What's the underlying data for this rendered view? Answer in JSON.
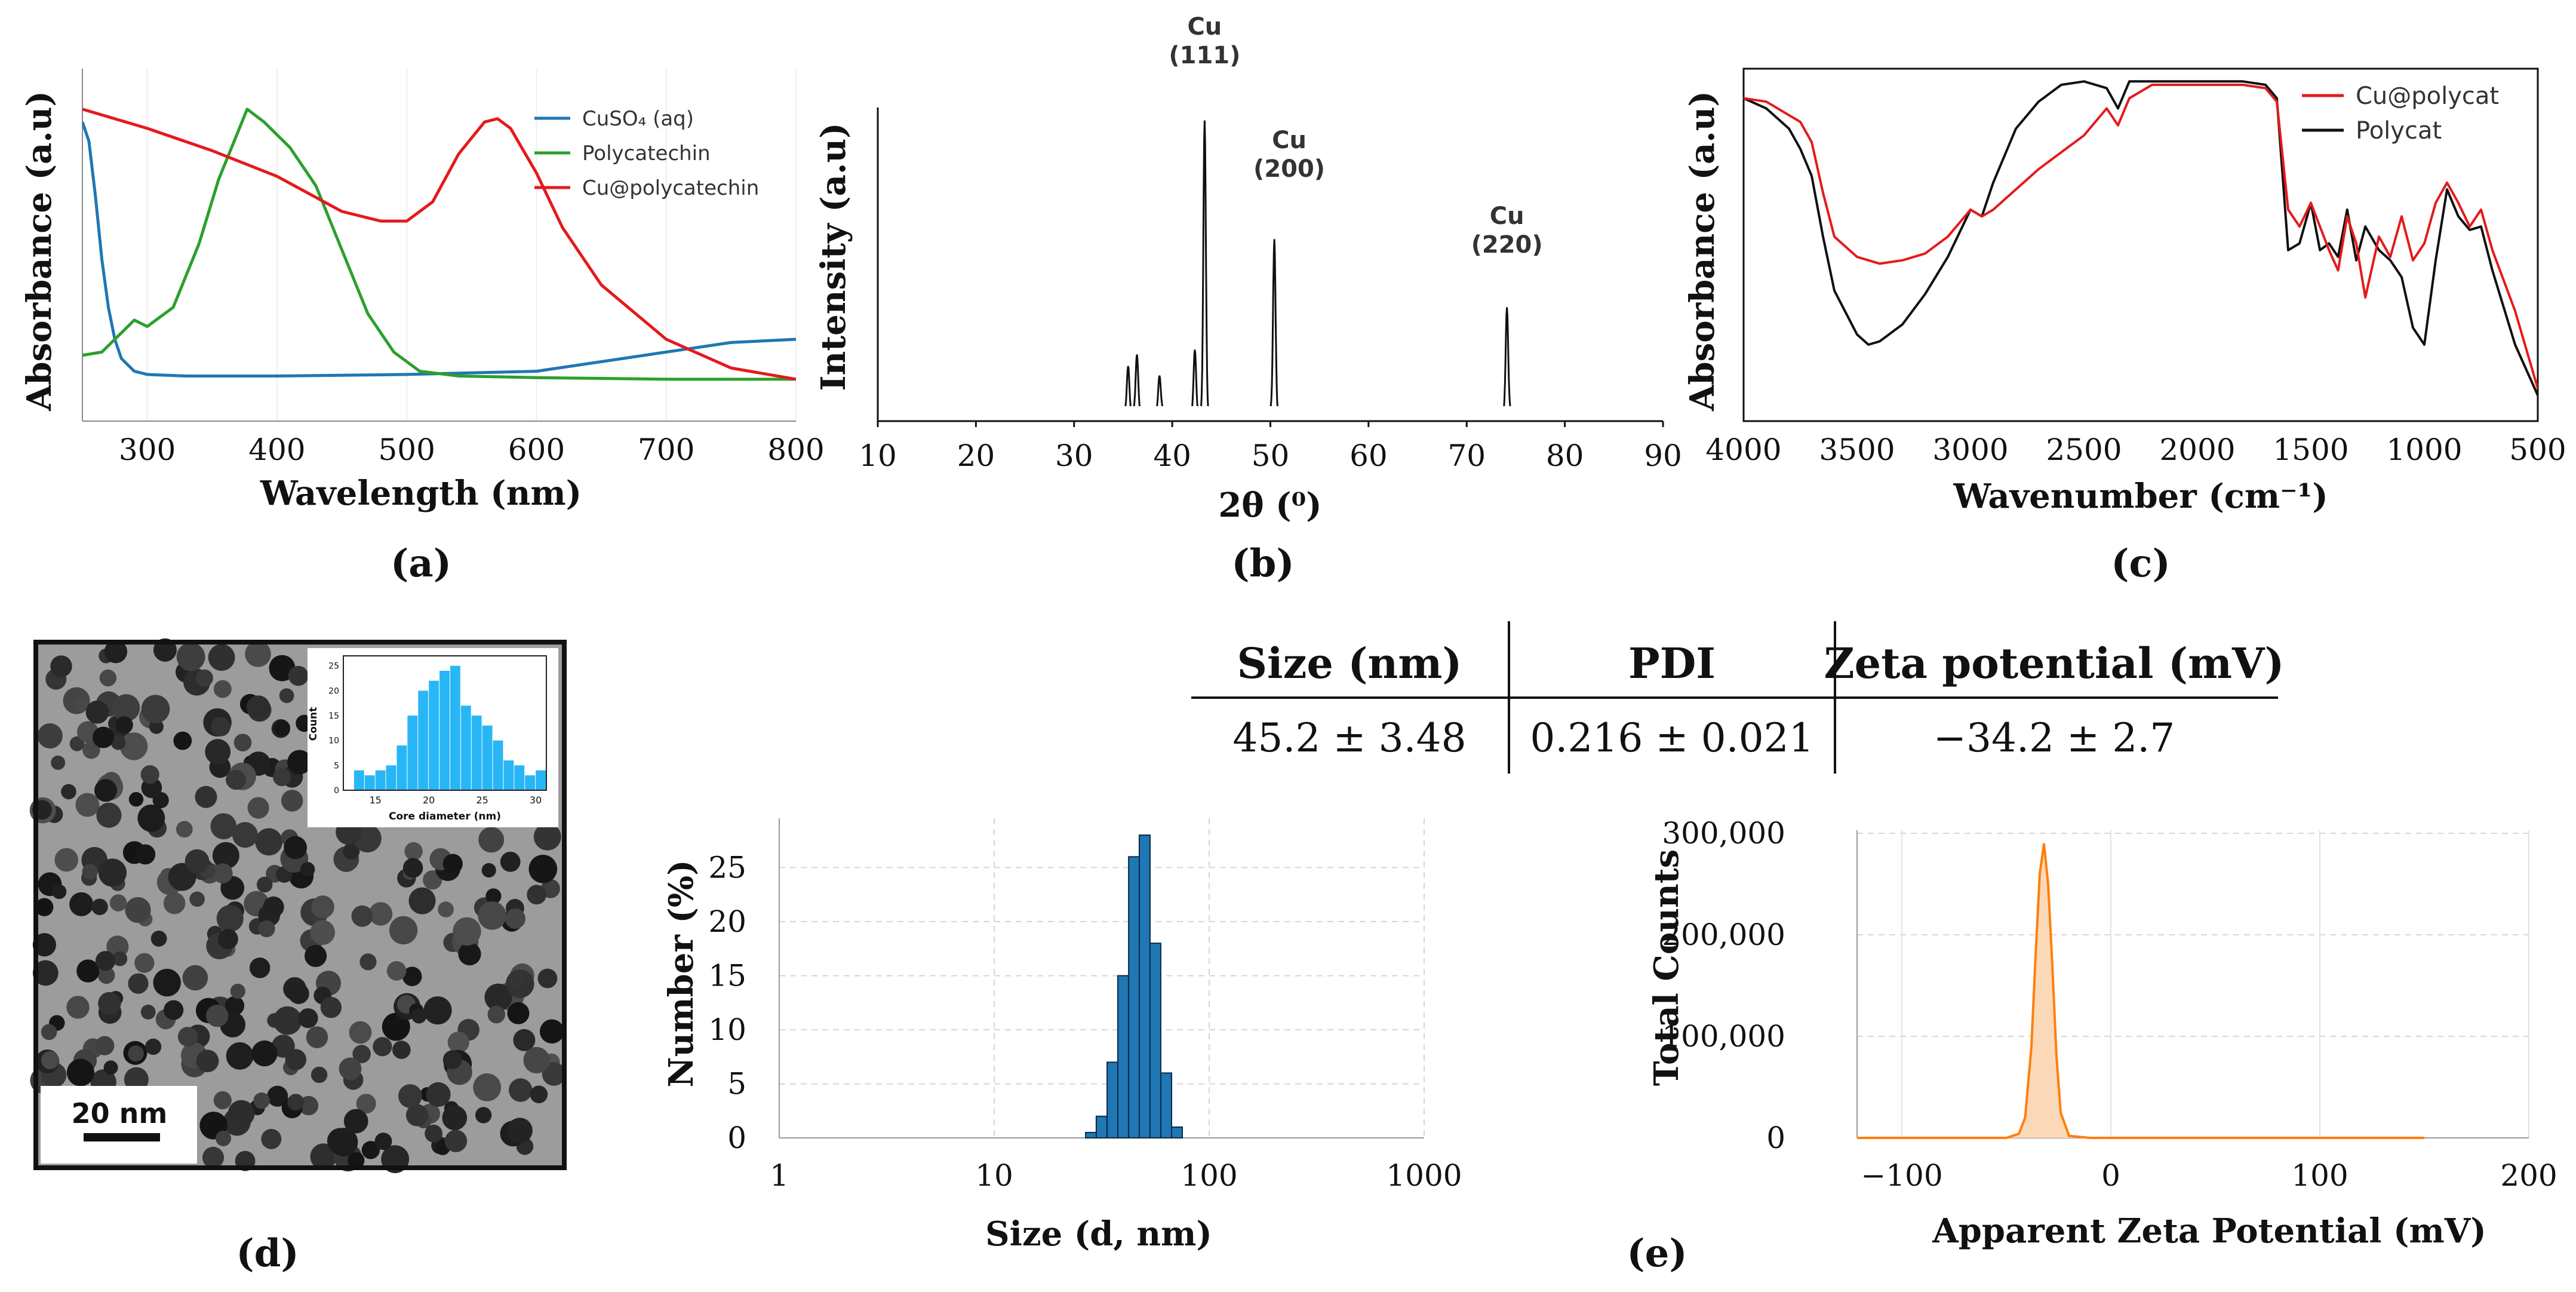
{
  "chart_data": [
    {
      "panel": "(a)",
      "type": "line",
      "xlabel": "Wavelength (nm)",
      "ylabel": "Absorbance (a.u)",
      "xlim": [
        250,
        800
      ],
      "ylim": [
        0,
        1.0
      ],
      "xticks": [
        300,
        400,
        500,
        600,
        700,
        800
      ],
      "legend": "top-right",
      "series": [
        {
          "name": "CuSO₄ (aq)",
          "color": "#1f77b4",
          "x": [
            250,
            255,
            260,
            265,
            270,
            275,
            280,
            290,
            300,
            330,
            400,
            500,
            600,
            650,
            700,
            750,
            800
          ],
          "y": [
            0.88,
            0.82,
            0.65,
            0.45,
            0.3,
            0.2,
            0.14,
            0.1,
            0.09,
            0.085,
            0.085,
            0.09,
            0.1,
            0.13,
            0.16,
            0.19,
            0.2
          ]
        },
        {
          "name": "Polycatechin",
          "color": "#2ca02c",
          "x": [
            250,
            265,
            280,
            290,
            300,
            320,
            340,
            355,
            370,
            377,
            390,
            410,
            430,
            450,
            470,
            490,
            510,
            540,
            600,
            700,
            800
          ],
          "y": [
            0.15,
            0.16,
            0.22,
            0.26,
            0.24,
            0.3,
            0.5,
            0.7,
            0.85,
            0.92,
            0.88,
            0.8,
            0.68,
            0.48,
            0.28,
            0.16,
            0.1,
            0.085,
            0.08,
            0.075,
            0.075
          ]
        },
        {
          "name": "Cu@polycatechin",
          "color": "#e41a1c",
          "x": [
            250,
            300,
            350,
            400,
            450,
            480,
            500,
            520,
            540,
            560,
            570,
            580,
            600,
            620,
            650,
            700,
            750,
            800
          ],
          "y": [
            0.92,
            0.86,
            0.79,
            0.71,
            0.6,
            0.57,
            0.57,
            0.63,
            0.78,
            0.88,
            0.89,
            0.86,
            0.72,
            0.55,
            0.37,
            0.2,
            0.11,
            0.075
          ]
        }
      ]
    },
    {
      "panel": "(b)",
      "type": "line",
      "xlabel": "2θ (⁰)",
      "ylabel": "Intensity (a.u)",
      "xlim": [
        10,
        90
      ],
      "ylim": [
        0,
        1.0
      ],
      "xticks": [
        10,
        20,
        30,
        40,
        50,
        60,
        70,
        80,
        90
      ],
      "peaks": [
        {
          "label": "Cu",
          "hkl": "(111)",
          "x": 43.3,
          "y": 0.95
        },
        {
          "label": "Cu",
          "hkl": "(200)",
          "x": 50.4,
          "y": 0.58
        },
        {
          "label": "Cu",
          "hkl": "(220)",
          "x": 74.1,
          "y": 0.36
        }
      ],
      "minor_peaks": [
        {
          "x": 35.5,
          "y": 0.17
        },
        {
          "x": 36.4,
          "y": 0.21
        },
        {
          "x": 38.7,
          "y": 0.15
        },
        {
          "x": 42.3,
          "y": 0.22
        }
      ],
      "baseline": 0.03,
      "color": "#111111"
    },
    {
      "panel": "(c)",
      "type": "line",
      "xlabel": "Wavenumber (cm⁻¹)",
      "ylabel": "Absorbance (a.u)",
      "xlim": [
        4000,
        500
      ],
      "ylim": [
        0,
        1.0
      ],
      "xticks": [
        4000,
        3500,
        3000,
        2500,
        2000,
        1500,
        1000,
        500
      ],
      "legend": "top-right",
      "series": [
        {
          "name": "Cu@polycat",
          "color": "#e41a1c",
          "x": [
            4000,
            3900,
            3800,
            3750,
            3700,
            3650,
            3600,
            3500,
            3400,
            3300,
            3200,
            3100,
            3000,
            2950,
            2900,
            2700,
            2500,
            2400,
            2350,
            2300,
            2200,
            2000,
            1800,
            1700,
            1650,
            1600,
            1550,
            1500,
            1460,
            1420,
            1380,
            1340,
            1300,
            1260,
            1200,
            1150,
            1100,
            1050,
            1000,
            950,
            900,
            850,
            800,
            750,
            700,
            600,
            500
          ],
          "y": [
            0.93,
            0.92,
            0.88,
            0.86,
            0.8,
            0.65,
            0.52,
            0.46,
            0.44,
            0.45,
            0.47,
            0.52,
            0.6,
            0.58,
            0.6,
            0.72,
            0.82,
            0.9,
            0.85,
            0.93,
            0.97,
            0.97,
            0.97,
            0.96,
            0.92,
            0.6,
            0.55,
            0.62,
            0.55,
            0.48,
            0.42,
            0.58,
            0.5,
            0.34,
            0.52,
            0.46,
            0.58,
            0.45,
            0.5,
            0.62,
            0.68,
            0.62,
            0.55,
            0.6,
            0.48,
            0.3,
            0.07
          ]
        },
        {
          "name": "Polycat",
          "color": "#111111",
          "x": [
            4000,
            3900,
            3800,
            3750,
            3700,
            3650,
            3600,
            3500,
            3450,
            3400,
            3300,
            3200,
            3100,
            3000,
            2950,
            2900,
            2800,
            2700,
            2600,
            2500,
            2400,
            2350,
            2300,
            2200,
            2000,
            1800,
            1700,
            1650,
            1600,
            1550,
            1500,
            1460,
            1420,
            1380,
            1340,
            1300,
            1260,
            1200,
            1150,
            1100,
            1050,
            1000,
            950,
            900,
            850,
            800,
            750,
            700,
            600,
            500
          ],
          "y": [
            0.93,
            0.9,
            0.84,
            0.78,
            0.7,
            0.52,
            0.36,
            0.23,
            0.2,
            0.21,
            0.26,
            0.35,
            0.46,
            0.6,
            0.58,
            0.68,
            0.84,
            0.92,
            0.97,
            0.98,
            0.96,
            0.9,
            0.98,
            0.98,
            0.98,
            0.98,
            0.97,
            0.93,
            0.48,
            0.5,
            0.62,
            0.48,
            0.5,
            0.46,
            0.6,
            0.45,
            0.55,
            0.48,
            0.45,
            0.4,
            0.25,
            0.2,
            0.45,
            0.66,
            0.58,
            0.54,
            0.55,
            0.42,
            0.2,
            0.05
          ]
        }
      ]
    },
    {
      "panel": "(d)",
      "type": "bar",
      "title": "",
      "xlabel": "Core diameter (nm)",
      "ylabel": "Count",
      "xlim": [
        12,
        31
      ],
      "ylim": [
        0,
        27
      ],
      "xticks": [
        15,
        20,
        25,
        30
      ],
      "yticks": [
        0,
        5,
        10,
        15,
        20,
        25
      ],
      "bin_starts": [
        13,
        14,
        15,
        16,
        17,
        18,
        19,
        20,
        21,
        22,
        23,
        24,
        25,
        26,
        27,
        28,
        29,
        30
      ],
      "values": [
        4,
        3,
        4,
        5,
        9,
        15,
        20,
        22,
        24,
        25,
        17,
        15,
        13,
        10,
        6,
        5,
        3,
        4
      ],
      "color": "#29b6f6",
      "scale_bar": "20 nm"
    },
    {
      "panel": "(e) size",
      "type": "bar",
      "xlabel": "Size (d, nm)",
      "ylabel": "Number (%)",
      "xscale": "log",
      "xlim": [
        1,
        1000
      ],
      "ylim": [
        0,
        29
      ],
      "xticks": [
        1,
        10,
        100,
        1000
      ],
      "yticks": [
        0,
        5,
        10,
        15,
        20,
        25
      ],
      "bin_centers": [
        28.2,
        31.6,
        35.5,
        39.8,
        44.7,
        50.1,
        56.2,
        63.1,
        70.8
      ],
      "values": [
        0.5,
        2,
        7,
        15,
        26,
        28,
        18,
        6,
        1
      ],
      "color": "#1f77b4"
    },
    {
      "panel": "(e) zeta",
      "type": "area",
      "xlabel": "Apparent Zeta Potential (mV)",
      "ylabel": "Total Counts",
      "xlim": [
        -200,
        200
      ],
      "ylim": [
        0,
        300000
      ],
      "xticks": [
        -100,
        0,
        100,
        200
      ],
      "yticks": [
        0,
        100000,
        200000,
        300000
      ],
      "x": [
        -140,
        -60,
        -50,
        -44,
        -41,
        -38,
        -36,
        -34,
        -32,
        -30,
        -28,
        -26,
        -24,
        -20,
        -10,
        150
      ],
      "y": [
        0,
        0,
        0,
        4000,
        20000,
        90000,
        180000,
        260000,
        290000,
        250000,
        170000,
        80000,
        25000,
        2000,
        0,
        0
      ],
      "color": "#ff7f0e"
    }
  ],
  "ticks": {
    "a": [
      "300",
      "400",
      "500",
      "600",
      "700",
      "800"
    ],
    "b": [
      "10",
      "20",
      "30",
      "40",
      "50",
      "60",
      "70",
      "80",
      "90"
    ],
    "c": [
      "4000",
      "3500",
      "3000",
      "2500",
      "2000",
      "1500",
      "1000",
      "500"
    ],
    "d_hist_x": [
      "15",
      "20",
      "25",
      "30"
    ],
    "d_hist_y": [
      "0",
      "5",
      "10",
      "15",
      "20",
      "25"
    ],
    "e_size_x": [
      "1",
      "10",
      "100",
      "1000"
    ],
    "e_size_y": [
      "0",
      "5",
      "10",
      "15",
      "20",
      "25"
    ],
    "e_zeta_x": [
      "−100",
      "0",
      "100",
      "200"
    ],
    "e_zeta_y": [
      "0",
      "100,000",
      "200,000",
      "300,000"
    ]
  },
  "panel_labels": {
    "a": "(a)",
    "b": "(b)",
    "c": "(c)",
    "d": "(d)",
    "e": "(e)"
  },
  "scale_bar_label": "20 nm",
  "table": {
    "headers": [
      "Size (nm)",
      "PDI",
      "Zeta potential (mV)"
    ],
    "row": [
      "45.2 ± 3.48",
      "0.216 ± 0.021",
      "−34.2 ± 2.7"
    ]
  }
}
